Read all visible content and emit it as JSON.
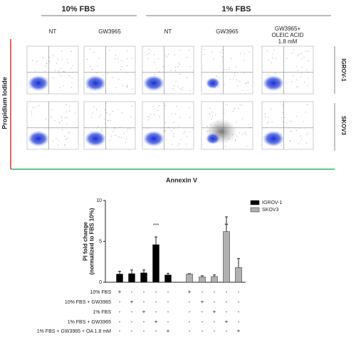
{
  "header": {
    "groups": [
      "10% FBS",
      "1% FBS"
    ],
    "columns": [
      "NT",
      "GW3965",
      "NT",
      "GW3965",
      "GW3965+\nOLEIC ACID\n1.8 mM"
    ],
    "rows": [
      "IGROV-1",
      "SKOV3"
    ],
    "y_label": "Propidium Iodide",
    "x_label": "Annexin V"
  },
  "chart_data": {
    "type": "bar",
    "y_label": "PI fold change\n(normalized to FBS 10%)",
    "categories": [
      "10% FBS",
      "10% FBS + GW3965",
      "1% FBS",
      "1% FBS + GW3965",
      "1% FBS + GW3965 + OA 1.8 mM"
    ],
    "series": [
      {
        "name": "IGROV-1",
        "color": "#000000",
        "values": [
          1.0,
          1.05,
          1.15,
          4.6,
          0.9
        ],
        "errors": [
          0.35,
          0.45,
          0.35,
          0.95,
          0.2
        ]
      },
      {
        "name": "SKOV3",
        "color": "#b0b0b0",
        "values": [
          1.0,
          0.65,
          0.7,
          6.2,
          1.8
        ],
        "errors": [
          0.05,
          0.15,
          0.2,
          1.8,
          1.1
        ]
      }
    ],
    "annotations": [
      "***",
      "**"
    ],
    "conditions": [
      [
        "+",
        "-",
        "-",
        "-",
        "-",
        "+",
        "-",
        "-",
        "-",
        "-"
      ],
      [
        "-",
        "+",
        "-",
        "-",
        "-",
        "-",
        "+",
        "-",
        "-",
        "-"
      ],
      [
        "-",
        "-",
        "+",
        "-",
        "-",
        "-",
        "-",
        "+",
        "-",
        "-"
      ],
      [
        "-",
        "-",
        "-",
        "+",
        "-",
        "-",
        "-",
        "-",
        "+",
        "-"
      ],
      [
        "-",
        "-",
        "-",
        "-",
        "+",
        "-",
        "-",
        "-",
        "-",
        "+"
      ]
    ],
    "ylim": [
      0,
      10
    ],
    "yticks": [
      0,
      5,
      10
    ],
    "legend": "top-right"
  }
}
